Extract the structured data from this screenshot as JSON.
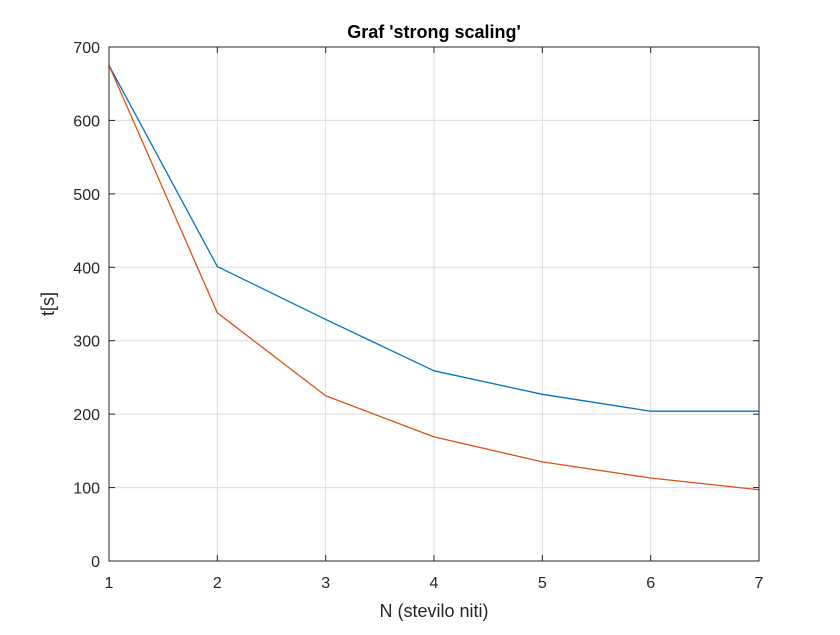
{
  "chart_data": {
    "type": "line",
    "title": "Graf 'strong scaling'",
    "xlabel": "N (stevilo niti)",
    "ylabel": "t[s]",
    "xlim": [
      1,
      7
    ],
    "ylim": [
      0,
      700
    ],
    "xticks": [
      1,
      2,
      3,
      4,
      5,
      6,
      7
    ],
    "yticks": [
      0,
      100,
      200,
      300,
      400,
      500,
      600,
      700
    ],
    "grid": true,
    "box": true,
    "legend": "none",
    "x": [
      1,
      2,
      3,
      4,
      5,
      6,
      7
    ],
    "series": [
      {
        "values": [
          675,
          401,
          329,
          259,
          227,
          204,
          204
        ],
        "color": "#0072BD"
      },
      {
        "values": [
          675,
          338,
          225,
          169,
          135,
          113,
          97
        ],
        "color": "#D95319"
      }
    ]
  },
  "colors": {
    "axes": "#262626",
    "grid": "#dcdcdc",
    "background": "#ffffff"
  }
}
